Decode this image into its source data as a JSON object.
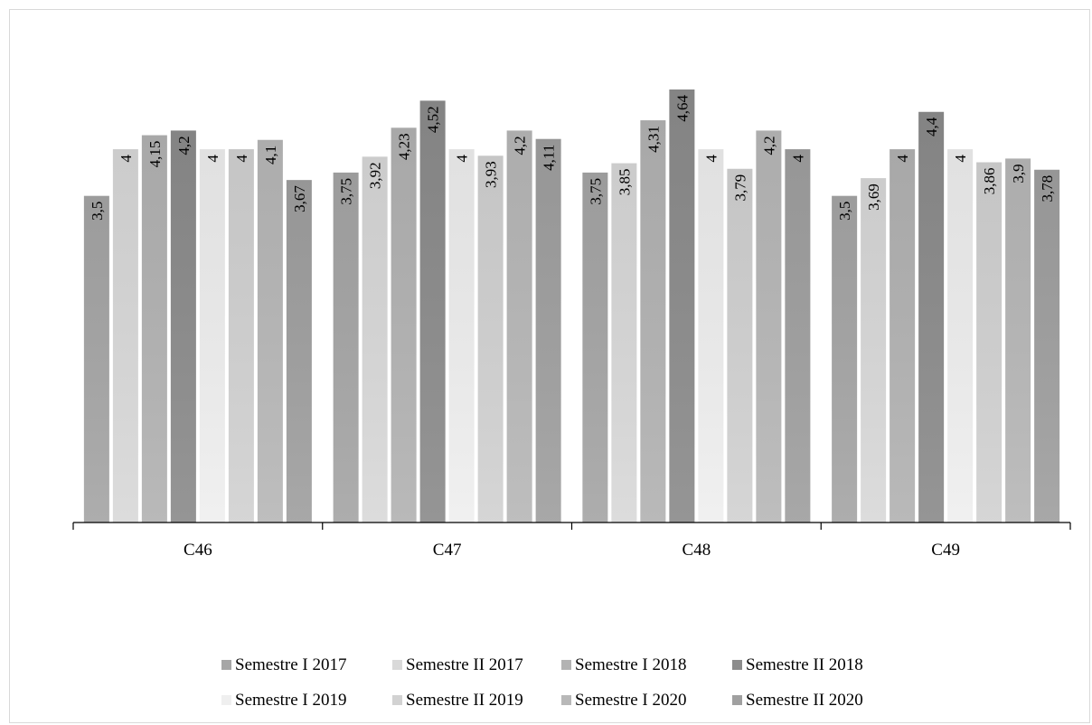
{
  "chart_data": {
    "type": "bar",
    "title": "",
    "xlabel": "",
    "ylabel": "",
    "categories": [
      "C46",
      "C47",
      "C48",
      "C49"
    ],
    "ylim": [
      0,
      5
    ],
    "grid": false,
    "legend_position": "bottom",
    "series": [
      {
        "name": "Semestre I 2017",
        "color": "#a6a6a6",
        "values": [
          3.5,
          3.75,
          3.75,
          3.5
        ],
        "labels": [
          "3,5",
          "3,75",
          "3,75",
          "3,5"
        ]
      },
      {
        "name": "Semestre II 2017",
        "color": "#d9d9d9",
        "values": [
          4,
          3.92,
          3.85,
          3.69
        ],
        "labels": [
          "4",
          "3,92",
          "3,85",
          "3,69"
        ]
      },
      {
        "name": "Semestre I 2018",
        "color": "#b3b3b3",
        "values": [
          4.15,
          4.23,
          4.31,
          4
        ],
        "labels": [
          "4,15",
          "4,23",
          "4,31",
          "4"
        ]
      },
      {
        "name": "Semestre II 2018",
        "color": "#8c8c8c",
        "values": [
          4.2,
          4.52,
          4.64,
          4.4
        ],
        "labels": [
          "4,2",
          "4,52",
          "4,64",
          "4,4"
        ]
      },
      {
        "name": "Semestre I 2019",
        "color": "#efefef",
        "values": [
          4,
          4,
          4,
          4
        ],
        "labels": [
          "4",
          "4",
          "4",
          "4"
        ]
      },
      {
        "name": "Semestre II 2019",
        "color": "#d2d2d2",
        "values": [
          4,
          3.93,
          3.79,
          3.86
        ],
        "labels": [
          "4",
          "3,93",
          "3,79",
          "3,86"
        ]
      },
      {
        "name": "Semestre I 2020",
        "color": "#b8b8b8",
        "values": [
          4.1,
          4.2,
          4.2,
          3.9
        ],
        "labels": [
          "4,1",
          "4,2",
          "4,2",
          "3,9"
        ]
      },
      {
        "name": "Semestre II 2020",
        "color": "#a0a0a0",
        "values": [
          3.67,
          4.11,
          4,
          3.78
        ],
        "labels": [
          "3,67",
          "4,11",
          "4",
          "3,78"
        ]
      }
    ]
  }
}
